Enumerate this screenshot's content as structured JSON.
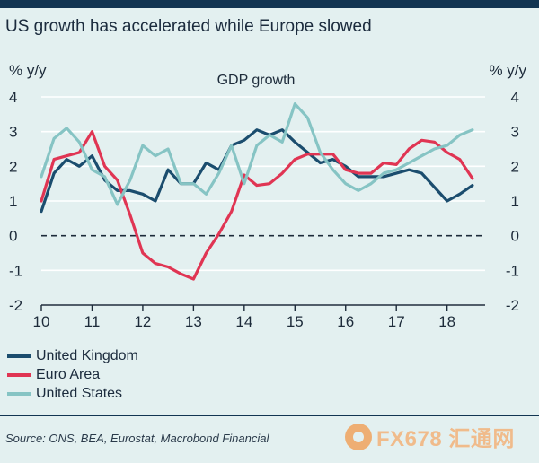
{
  "header": {
    "title": "US growth has accelerated while Europe slowed"
  },
  "chart_data": {
    "type": "line",
    "title": "GDP growth",
    "ylabel_left": "% y/y",
    "ylabel_right": "% y/y",
    "xlabel": "",
    "ylim": [
      -2,
      4
    ],
    "yticks": [
      4,
      3,
      2,
      1,
      0,
      -1,
      -2
    ],
    "xlim": [
      10,
      18.75
    ],
    "xticks": [
      "10",
      "11",
      "12",
      "13",
      "14",
      "15",
      "16",
      "17",
      "18"
    ],
    "zero_line": "dashed",
    "series": [
      {
        "name": "United Kingdom",
        "color": "#1b4d6e",
        "x": [
          10,
          10.25,
          10.5,
          10.75,
          11,
          11.25,
          11.5,
          11.75,
          12,
          12.25,
          12.5,
          12.75,
          13,
          13.25,
          13.5,
          13.75,
          14,
          14.25,
          14.5,
          14.75,
          15,
          15.25,
          15.5,
          15.75,
          16,
          16.25,
          16.5,
          16.75,
          17,
          17.25,
          17.5,
          17.75,
          18,
          18.25,
          18.5
        ],
        "values": [
          0.7,
          1.8,
          2.2,
          2.0,
          2.3,
          1.6,
          1.3,
          1.3,
          1.2,
          1.0,
          1.9,
          1.5,
          1.5,
          2.1,
          1.9,
          2.6,
          2.75,
          3.05,
          2.9,
          3.05,
          2.7,
          2.4,
          2.1,
          2.2,
          2.0,
          1.7,
          1.7,
          1.7,
          1.8,
          1.9,
          1.8,
          1.4,
          1.0,
          1.2,
          1.45
        ]
      },
      {
        "name": "Euro Area",
        "color": "#e03553",
        "x": [
          10,
          10.25,
          10.5,
          10.75,
          11,
          11.25,
          11.5,
          11.75,
          12,
          12.25,
          12.5,
          12.75,
          13,
          13.25,
          13.5,
          13.75,
          14,
          14.25,
          14.5,
          14.75,
          15,
          15.25,
          15.5,
          15.75,
          16,
          16.25,
          16.5,
          16.75,
          17,
          17.25,
          17.5,
          17.75,
          18,
          18.25,
          18.5
        ],
        "values": [
          1.0,
          2.2,
          2.3,
          2.4,
          3.0,
          2.0,
          1.6,
          0.6,
          -0.5,
          -0.8,
          -0.9,
          -1.1,
          -1.25,
          -0.5,
          0.05,
          0.7,
          1.75,
          1.45,
          1.5,
          1.8,
          2.2,
          2.35,
          2.35,
          2.35,
          1.9,
          1.8,
          1.8,
          2.1,
          2.05,
          2.5,
          2.75,
          2.7,
          2.4,
          2.2,
          1.65
        ]
      },
      {
        "name": "United States",
        "color": "#86c4c4",
        "x": [
          10,
          10.25,
          10.5,
          10.75,
          11,
          11.25,
          11.5,
          11.75,
          12,
          12.25,
          12.5,
          12.75,
          13,
          13.25,
          13.5,
          13.75,
          14,
          14.25,
          14.5,
          14.75,
          15,
          15.25,
          15.5,
          15.75,
          16,
          16.25,
          16.5,
          16.75,
          17,
          17.25,
          17.5,
          17.75,
          18,
          18.25,
          18.5
        ],
        "values": [
          1.7,
          2.8,
          3.1,
          2.7,
          1.9,
          1.7,
          0.9,
          1.6,
          2.6,
          2.3,
          2.5,
          1.5,
          1.5,
          1.2,
          1.8,
          2.6,
          1.5,
          2.6,
          2.9,
          2.7,
          3.8,
          3.4,
          2.4,
          1.9,
          1.5,
          1.3,
          1.5,
          1.8,
          1.9,
          2.1,
          2.3,
          2.5,
          2.6,
          2.9,
          3.05
        ]
      }
    ],
    "legend_position": "bottom-left"
  },
  "footer": {
    "source": "Source: ONS, BEA, Eurostat, Macrobond Financial"
  },
  "watermark": {
    "text": "FX678 汇通网"
  }
}
